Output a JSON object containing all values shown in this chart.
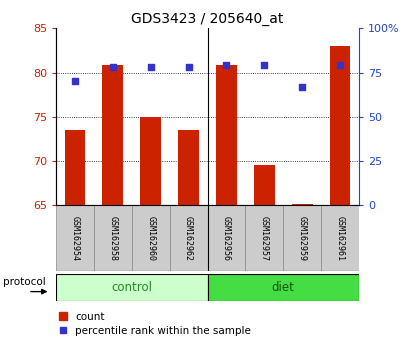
{
  "title": "GDS3423 / 205640_at",
  "samples": [
    "GSM162954",
    "GSM162958",
    "GSM162960",
    "GSM162962",
    "GSM162956",
    "GSM162957",
    "GSM162959",
    "GSM162961"
  ],
  "red_values": [
    73.5,
    80.8,
    75.0,
    73.5,
    80.8,
    69.5,
    65.2,
    83.0
  ],
  "blue_values": [
    70,
    78,
    78,
    78,
    79,
    79,
    67,
    79
  ],
  "ylim_left": [
    65,
    85
  ],
  "ylim_right": [
    0,
    100
  ],
  "yticks_left": [
    65,
    70,
    75,
    80,
    85
  ],
  "yticks_right": [
    0,
    25,
    50,
    75,
    100
  ],
  "ytick_labels_right": [
    "0",
    "25",
    "50",
    "75",
    "100%"
  ],
  "bar_color": "#cc2200",
  "dot_color": "#3333cc",
  "control_bg": "#ccffcc",
  "diet_bg": "#44dd44",
  "tick_color_left": "#cc2200",
  "tick_color_right": "#2244cc",
  "bar_bottom": 65,
  "n_control": 4,
  "n_diet": 4
}
